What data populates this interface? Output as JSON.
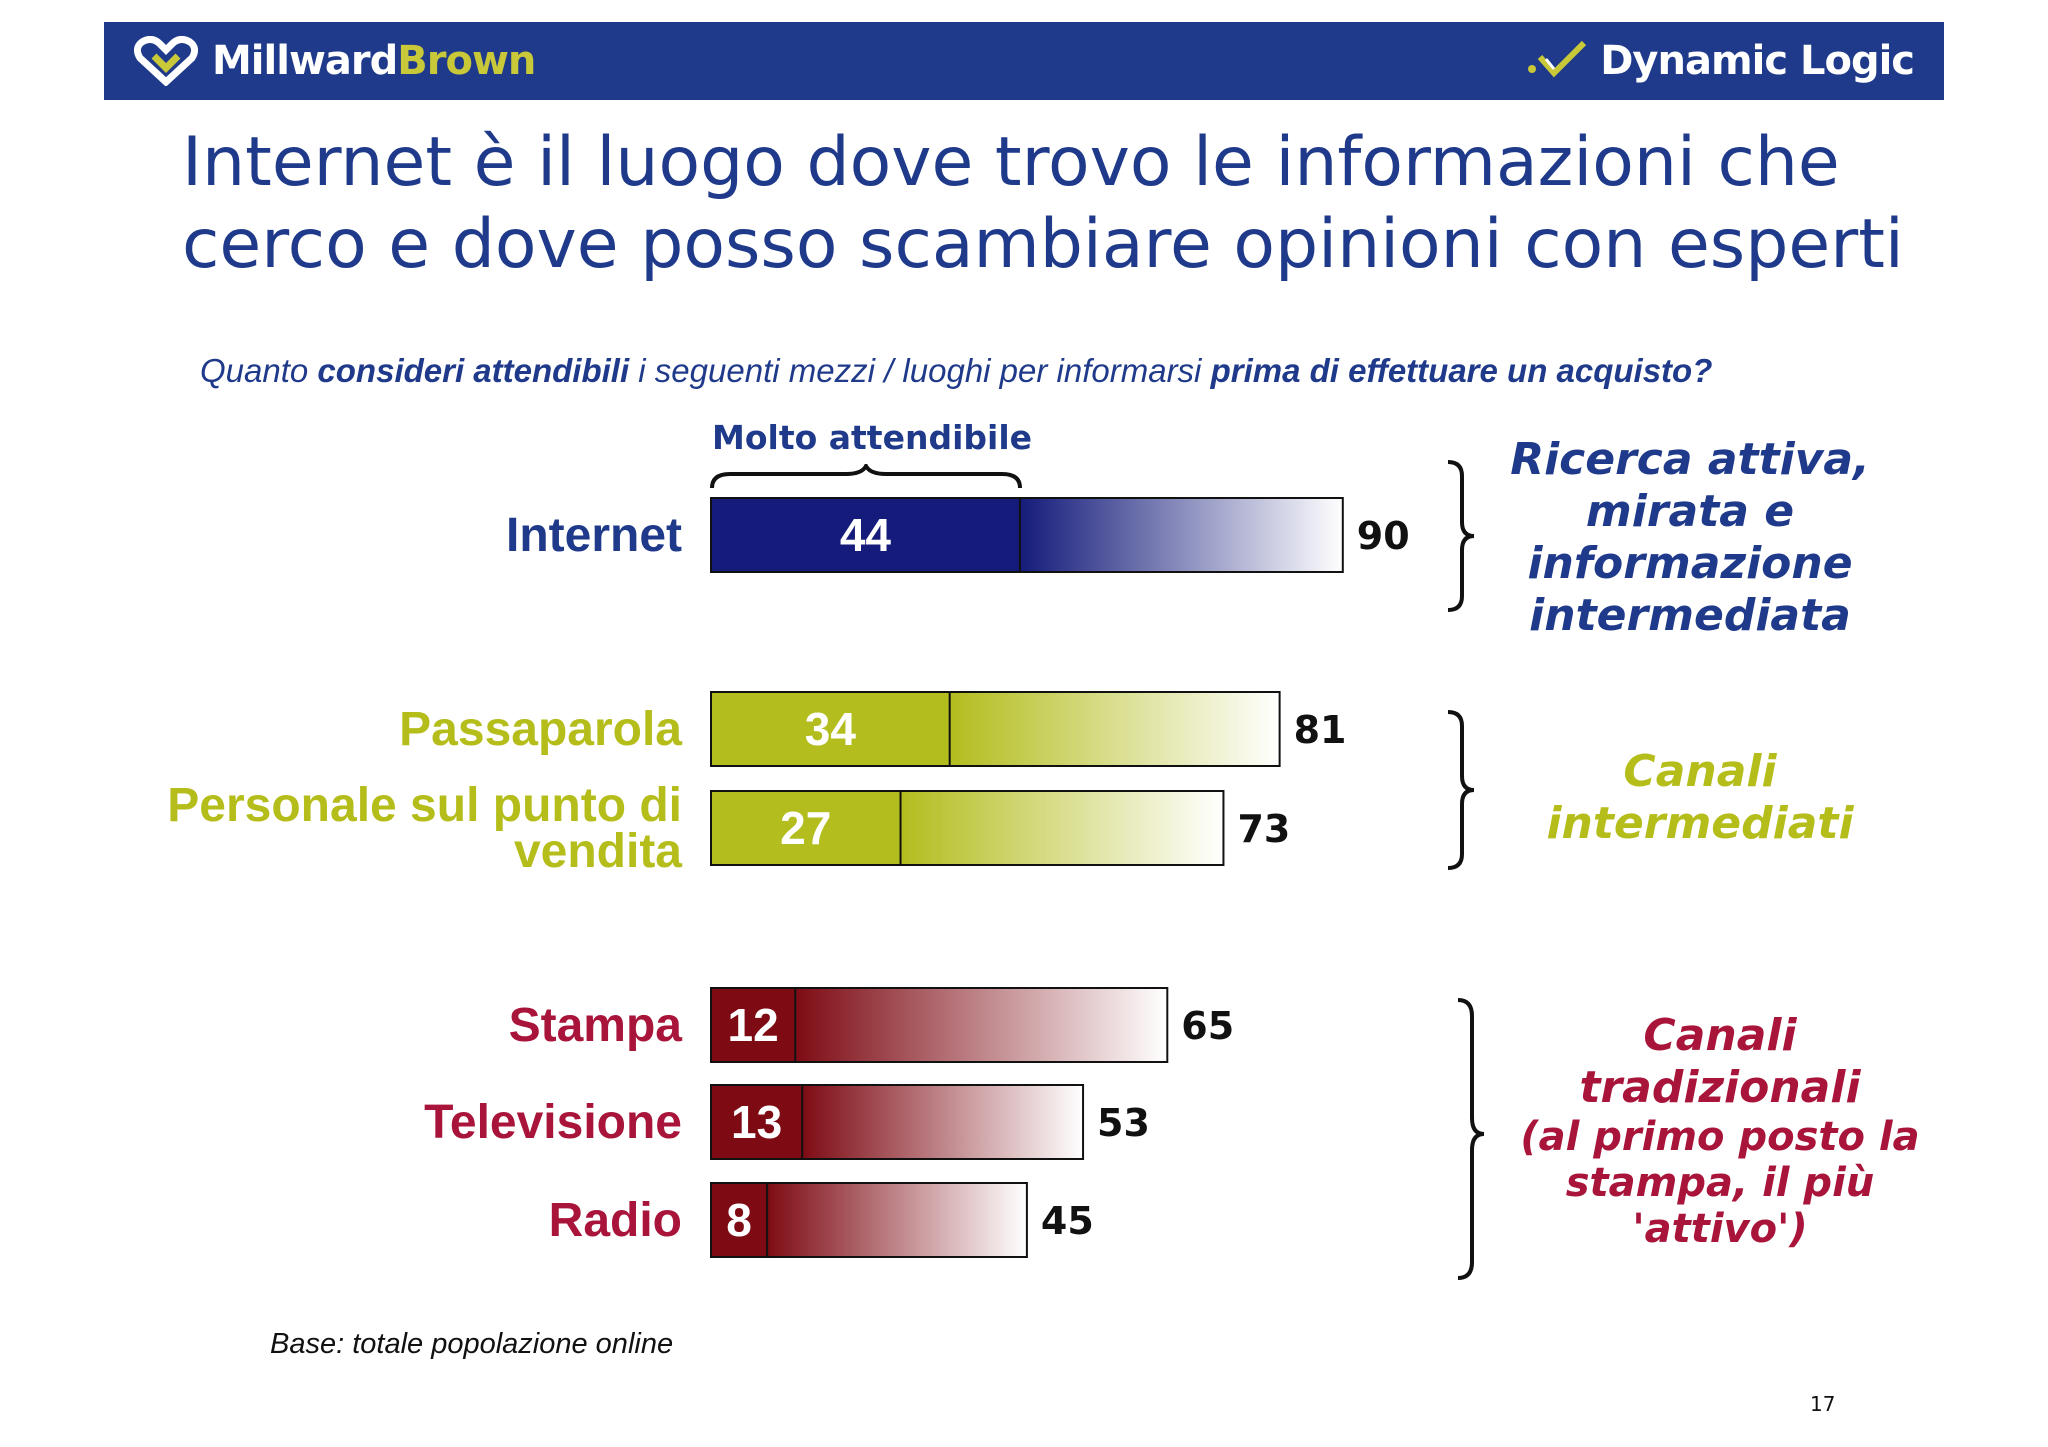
{
  "header": {
    "brand_left_part1": "Millward",
    "brand_left_part2": "Brown",
    "brand_right": "Dynamic Logic",
    "bg_color": "#1f3a8a"
  },
  "title": "Internet è il luogo dove trovo le informazioni che cerco e dove posso scambiare opinioni con esperti",
  "question": {
    "part1": "Quanto ",
    "bold1": "consideri attendibili",
    "part2": " i seguenti mezzi / luoghi per informarsi ",
    "bold2": "prima di effettuare un acquisto?"
  },
  "chart_data": {
    "type": "bar",
    "orientation": "horizontal",
    "stacked_annotation": "Molto attendibile",
    "categories": [
      "Internet",
      "Passaparola",
      "Personale sul punto di vendita",
      "Stampa",
      "Televisione",
      "Radio"
    ],
    "series": [
      {
        "name": "Molto attendibile",
        "values": [
          44,
          34,
          27,
          12,
          13,
          8
        ]
      },
      {
        "values": [
          90,
          81,
          73,
          65,
          53,
          45
        ]
      }
    ],
    "groups": [
      {
        "label": "Ricerca attiva, mirata e informazione intermediata",
        "categories": [
          "Internet"
        ],
        "color": "#1a237e"
      },
      {
        "label": "Canali intermediati",
        "categories": [
          "Passaparola",
          "Personale sul punto di vendita"
        ],
        "color": "#b5bd1a"
      },
      {
        "label": "Canali tradizionali (al primo posto la stampa, il più 'attivo')",
        "categories": [
          "Stampa",
          "Televisione",
          "Radio"
        ],
        "color": "#8b0a1a"
      }
    ],
    "category_colors": [
      "#1f3a8a",
      "#b5bd1a",
      "#b5bd1a",
      "#a8143a",
      "#a8143a",
      "#a8143a"
    ],
    "bar_colors": [
      "#141b7a",
      "#b3bd1e",
      "#b3bd1e",
      "#7e0b14",
      "#7e0b14",
      "#7e0b14"
    ],
    "category_lines": [
      [
        "Internet"
      ],
      [
        "Passaparola"
      ],
      [
        "Personale sul punto di",
        "vendita"
      ],
      [
        "Stampa"
      ],
      [
        "Televisione"
      ],
      [
        "Radio"
      ]
    ]
  },
  "group_labels": {
    "g1": [
      "Ricerca attiva,",
      "mirata e",
      "informazione",
      "intermediata"
    ],
    "g2": [
      "Canali",
      "intermediati"
    ],
    "g3_main": [
      "Canali",
      "tradizionali"
    ],
    "g3_sub": [
      "(al primo posto la",
      "stampa, il più",
      "'attivo')"
    ]
  },
  "footnote": "Base: totale popolazione online",
  "page_number": "17"
}
